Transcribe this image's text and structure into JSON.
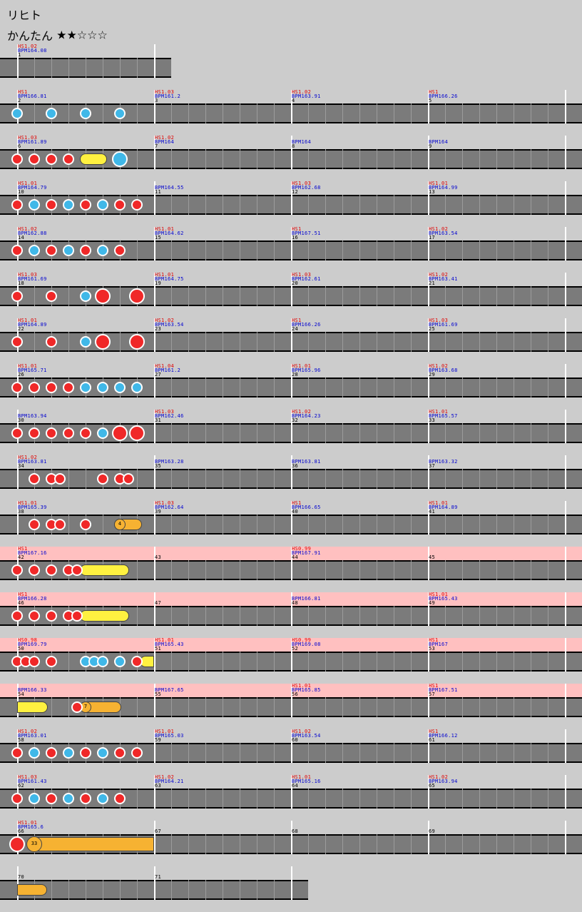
{
  "song_title": "リヒト",
  "difficulty": {
    "name": "かんたん",
    "stars_filled": 2,
    "stars_total": 5,
    "stars_text": "★★☆☆☆"
  },
  "measures_per_row": 4,
  "rows": [
    {
      "n": 1,
      "pink": false,
      "measures": [
        {
          "hs": "HS1.02",
          "bpm": "BPM164.08",
          "num": "1"
        }
      ],
      "notes": [],
      "rolls": []
    },
    {
      "n": 4,
      "pink": false,
      "measures": [
        {
          "hs": "HS1",
          "bpm": "BPM166.81",
          "num": "2"
        },
        {
          "hs": "HS1.03",
          "bpm": "BPM161.2",
          "num": "3"
        },
        {
          "hs": "HS1.02",
          "bpm": "BPM163.91",
          "num": "4"
        },
        {
          "hs": "HS1",
          "bpm": "BPM166.26",
          "num": "5"
        }
      ],
      "notes": [
        {
          "b": 0,
          "t": "ka"
        },
        {
          "b": 4,
          "t": "ka"
        },
        {
          "b": 8,
          "t": "ka"
        },
        {
          "b": 12,
          "t": "ka"
        }
      ],
      "rolls": []
    },
    {
      "n": 4,
      "pink": false,
      "measures": [
        {
          "hs": "HS1.03",
          "bpm": "BPM161.89",
          "num": "6"
        },
        {
          "hs": "HS1.02",
          "bpm": "BPM164",
          "num": "7"
        },
        {
          "hs": "",
          "bpm": "BPM164",
          "num": "8"
        },
        {
          "hs": "",
          "bpm": "BPM164",
          "num": "9"
        }
      ],
      "notes": [
        {
          "b": 0,
          "t": "dong"
        },
        {
          "b": 2,
          "t": "dong"
        },
        {
          "b": 4,
          "t": "dong"
        },
        {
          "b": 6,
          "t": "dong"
        },
        {
          "b": 12,
          "t": "ka",
          "big": true
        }
      ],
      "rolls": [
        {
          "s": 8,
          "e": 10.5,
          "c": "yellow"
        }
      ]
    },
    {
      "n": 4,
      "pink": false,
      "measures": [
        {
          "hs": "HS1.01",
          "bpm": "BPM164.79",
          "num": "10"
        },
        {
          "hs": "",
          "bpm": "BPM164.55",
          "num": "11"
        },
        {
          "hs": "HS1.03",
          "bpm": "BPM162.68",
          "num": "12"
        },
        {
          "hs": "HS1.01",
          "bpm": "BPM164.99",
          "num": "13"
        }
      ],
      "notes": [
        {
          "b": 0,
          "t": "dong"
        },
        {
          "b": 2,
          "t": "ka"
        },
        {
          "b": 4,
          "t": "dong"
        },
        {
          "b": 6,
          "t": "ka"
        },
        {
          "b": 8,
          "t": "dong"
        },
        {
          "b": 10,
          "t": "ka"
        },
        {
          "b": 12,
          "t": "dong"
        },
        {
          "b": 14,
          "t": "dong"
        }
      ],
      "rolls": []
    },
    {
      "n": 4,
      "pink": false,
      "measures": [
        {
          "hs": "HS1.02",
          "bpm": "BPM162.88",
          "num": "14"
        },
        {
          "hs": "HS1.01",
          "bpm": "BPM164.62",
          "num": "15"
        },
        {
          "hs": "HS1",
          "bpm": "BPM167.51",
          "num": "16"
        },
        {
          "hs": "HS1.02",
          "bpm": "BPM163.54",
          "num": "17"
        }
      ],
      "notes": [
        {
          "b": 0,
          "t": "dong"
        },
        {
          "b": 2,
          "t": "ka"
        },
        {
          "b": 4,
          "t": "dong"
        },
        {
          "b": 6,
          "t": "ka"
        },
        {
          "b": 8,
          "t": "dong"
        },
        {
          "b": 10,
          "t": "ka"
        },
        {
          "b": 12,
          "t": "dong"
        }
      ],
      "rolls": []
    },
    {
      "n": 4,
      "pink": false,
      "measures": [
        {
          "hs": "HS1.03",
          "bpm": "BPM161.69",
          "num": "18"
        },
        {
          "hs": "HS1.01",
          "bpm": "BPM164.75",
          "num": "19"
        },
        {
          "hs": "HS1.03",
          "bpm": "BPM162.61",
          "num": "20"
        },
        {
          "hs": "HS1.02",
          "bpm": "BPM163.41",
          "num": "21"
        }
      ],
      "notes": [
        {
          "b": 0,
          "t": "dong"
        },
        {
          "b": 4,
          "t": "dong"
        },
        {
          "b": 8,
          "t": "ka"
        },
        {
          "b": 10,
          "t": "dong",
          "big": true
        },
        {
          "b": 14,
          "t": "dong",
          "big": true
        }
      ],
      "rolls": []
    },
    {
      "n": 4,
      "pink": false,
      "measures": [
        {
          "hs": "HS1.01",
          "bpm": "BPM164.89",
          "num": "22"
        },
        {
          "hs": "HS1.02",
          "bpm": "BPM163.54",
          "num": "23"
        },
        {
          "hs": "HS1",
          "bpm": "BPM166.26",
          "num": "24"
        },
        {
          "hs": "HS1.03",
          "bpm": "BPM161.69",
          "num": "25"
        }
      ],
      "notes": [
        {
          "b": 0,
          "t": "dong"
        },
        {
          "b": 4,
          "t": "dong"
        },
        {
          "b": 8,
          "t": "ka"
        },
        {
          "b": 10,
          "t": "dong",
          "big": true
        },
        {
          "b": 14,
          "t": "dong",
          "big": true
        }
      ],
      "rolls": []
    },
    {
      "n": 4,
      "pink": false,
      "measures": [
        {
          "hs": "HS1.01",
          "bpm": "BPM165.71",
          "num": "26"
        },
        {
          "hs": "HS1.04",
          "bpm": "BPM161.2",
          "num": "27"
        },
        {
          "hs": "HS1.01",
          "bpm": "BPM165.96",
          "num": "28"
        },
        {
          "hs": "HS1.02",
          "bpm": "BPM163.68",
          "num": "29"
        }
      ],
      "notes": [
        {
          "b": 0,
          "t": "dong"
        },
        {
          "b": 2,
          "t": "dong"
        },
        {
          "b": 4,
          "t": "dong"
        },
        {
          "b": 6,
          "t": "dong"
        },
        {
          "b": 8,
          "t": "ka"
        },
        {
          "b": 10,
          "t": "ka"
        },
        {
          "b": 12,
          "t": "ka"
        },
        {
          "b": 14,
          "t": "ka"
        }
      ],
      "rolls": []
    },
    {
      "n": 4,
      "pink": false,
      "measures": [
        {
          "hs": "",
          "bpm": "BPM163.94",
          "num": "30"
        },
        {
          "hs": "HS1.03",
          "bpm": "BPM162.46",
          "num": "31"
        },
        {
          "hs": "HS1.02",
          "bpm": "BPM164.23",
          "num": "32"
        },
        {
          "hs": "HS1.01",
          "bpm": "BPM165.57",
          "num": "33"
        }
      ],
      "notes": [
        {
          "b": 0,
          "t": "dong"
        },
        {
          "b": 2,
          "t": "dong"
        },
        {
          "b": 4,
          "t": "dong"
        },
        {
          "b": 6,
          "t": "dong"
        },
        {
          "b": 8,
          "t": "dong"
        },
        {
          "b": 10,
          "t": "ka"
        },
        {
          "b": 12,
          "t": "dong",
          "big": true
        },
        {
          "b": 14,
          "t": "dong",
          "big": true
        }
      ],
      "rolls": []
    },
    {
      "n": 4,
      "pink": false,
      "measures": [
        {
          "hs": "HS1.02",
          "bpm": "BPM163.81",
          "num": "34"
        },
        {
          "hs": "",
          "bpm": "BPM163.28",
          "num": "35"
        },
        {
          "hs": "",
          "bpm": "BPM163.81",
          "num": "36"
        },
        {
          "hs": "",
          "bpm": "BPM163.32",
          "num": "37"
        }
      ],
      "notes": [
        {
          "b": 2,
          "t": "dong"
        },
        {
          "b": 4,
          "t": "dong"
        },
        {
          "b": 5,
          "t": "dong"
        },
        {
          "b": 10,
          "t": "dong"
        },
        {
          "b": 12,
          "t": "dong"
        },
        {
          "b": 13,
          "t": "dong"
        }
      ],
      "rolls": []
    },
    {
      "n": 4,
      "pink": false,
      "measures": [
        {
          "hs": "HS1.01",
          "bpm": "BPM165.39",
          "num": "38"
        },
        {
          "hs": "HS1.03",
          "bpm": "BPM162.64",
          "num": "39"
        },
        {
          "hs": "HS1",
          "bpm": "BPM166.65",
          "num": "40"
        },
        {
          "hs": "HS1.01",
          "bpm": "BPM164.89",
          "num": "41"
        }
      ],
      "notes": [
        {
          "b": 2,
          "t": "dong"
        },
        {
          "b": 4,
          "t": "dong"
        },
        {
          "b": 5,
          "t": "dong"
        },
        {
          "b": 8,
          "t": "dong"
        }
      ],
      "rolls": [
        {
          "s": 12,
          "e": 14.6,
          "c": "orange",
          "balloon": "4"
        }
      ]
    },
    {
      "n": 4,
      "pink": true,
      "measures": [
        {
          "hs": "HS1",
          "bpm": "BPM167.16",
          "num": "42"
        },
        {
          "hs": "",
          "bpm": "",
          "num": "43"
        },
        {
          "hs": "HS0.99",
          "bpm": "BPM167.91",
          "num": "44"
        },
        {
          "hs": "",
          "bpm": "",
          "num": "45"
        }
      ],
      "notes": [
        {
          "b": 0,
          "t": "dong"
        },
        {
          "b": 2,
          "t": "dong"
        },
        {
          "b": 4,
          "t": "dong"
        },
        {
          "b": 6,
          "t": "dong"
        },
        {
          "b": 7,
          "t": "dong"
        }
      ],
      "rolls": [
        {
          "s": 8,
          "e": 13.1,
          "c": "yellow"
        }
      ]
    },
    {
      "n": 4,
      "pink": true,
      "measures": [
        {
          "hs": "HS1",
          "bpm": "BPM166.28",
          "num": "46"
        },
        {
          "hs": "",
          "bpm": "",
          "num": "47"
        },
        {
          "hs": "",
          "bpm": "BPM166.81",
          "num": "48"
        },
        {
          "hs": "HS1.01",
          "bpm": "BPM165.43",
          "num": "49"
        }
      ],
      "notes": [
        {
          "b": 0,
          "t": "dong"
        },
        {
          "b": 2,
          "t": "dong"
        },
        {
          "b": 4,
          "t": "dong"
        },
        {
          "b": 6,
          "t": "dong"
        },
        {
          "b": 7,
          "t": "dong"
        }
      ],
      "rolls": [
        {
          "s": 8,
          "e": 13.1,
          "c": "yellow"
        }
      ]
    },
    {
      "n": 4,
      "pink": true,
      "measures": [
        {
          "hs": "HS0.98",
          "bpm": "BPM169.79",
          "num": "50"
        },
        {
          "hs": "HS1.01",
          "bpm": "BPM165.43",
          "num": "51"
        },
        {
          "hs": "HS0.99",
          "bpm": "BPM169.08",
          "num": "52"
        },
        {
          "hs": "HS1",
          "bpm": "BPM167",
          "num": "53"
        }
      ],
      "notes": [
        {
          "b": 0,
          "t": "dong"
        },
        {
          "b": 1,
          "t": "dong"
        },
        {
          "b": 2,
          "t": "dong"
        },
        {
          "b": 4,
          "t": "dong"
        },
        {
          "b": 8,
          "t": "ka"
        },
        {
          "b": 9,
          "t": "ka"
        },
        {
          "b": 10,
          "t": "ka"
        },
        {
          "b": 12,
          "t": "ka"
        },
        {
          "b": 14,
          "t": "dong"
        }
      ],
      "rolls": [
        {
          "s": 15,
          "e": 16,
          "c": "yellow",
          "open_end": true
        }
      ]
    },
    {
      "n": 4,
      "pink": true,
      "measures": [
        {
          "hs": "",
          "bpm": "BPM166.33",
          "num": "54"
        },
        {
          "hs": "",
          "bpm": "BPM167.65",
          "num": "55"
        },
        {
          "hs": "HS1.01",
          "bpm": "BPM165.85",
          "num": "56"
        },
        {
          "hs": "HS1",
          "bpm": "BPM167.51",
          "num": "57"
        }
      ],
      "notes": [
        {
          "b": 7,
          "t": "dong"
        }
      ],
      "rolls": [
        {
          "s": 0,
          "e": 3.6,
          "c": "yellow",
          "open_start": true
        },
        {
          "s": 8,
          "e": 12.2,
          "c": "orange",
          "balloon": "7"
        }
      ]
    },
    {
      "n": 4,
      "pink": false,
      "measures": [
        {
          "hs": "HS1.02",
          "bpm": "BPM163.01",
          "num": "58"
        },
        {
          "hs": "HS1.01",
          "bpm": "BPM165.03",
          "num": "59"
        },
        {
          "hs": "HS1.02",
          "bpm": "BPM163.54",
          "num": "60"
        },
        {
          "hs": "HS1",
          "bpm": "BPM166.12",
          "num": "61"
        }
      ],
      "notes": [
        {
          "b": 0,
          "t": "dong"
        },
        {
          "b": 2,
          "t": "ka"
        },
        {
          "b": 4,
          "t": "dong"
        },
        {
          "b": 6,
          "t": "ka"
        },
        {
          "b": 8,
          "t": "dong"
        },
        {
          "b": 10,
          "t": "ka"
        },
        {
          "b": 12,
          "t": "dong"
        },
        {
          "b": 14,
          "t": "dong"
        }
      ],
      "rolls": []
    },
    {
      "n": 4,
      "pink": false,
      "measures": [
        {
          "hs": "HS1.03",
          "bpm": "BPM161.43",
          "num": "62"
        },
        {
          "hs": "HS1.02",
          "bpm": "BPM164.21",
          "num": "63"
        },
        {
          "hs": "HS1.01",
          "bpm": "BPM165.16",
          "num": "64"
        },
        {
          "hs": "HS1.02",
          "bpm": "BPM163.94",
          "num": "65"
        }
      ],
      "notes": [
        {
          "b": 0,
          "t": "dong"
        },
        {
          "b": 2,
          "t": "ka"
        },
        {
          "b": 4,
          "t": "dong"
        },
        {
          "b": 6,
          "t": "ka"
        },
        {
          "b": 8,
          "t": "dong"
        },
        {
          "b": 10,
          "t": "ka"
        },
        {
          "b": 12,
          "t": "dong"
        }
      ],
      "rolls": []
    },
    {
      "n": 4,
      "pink": false,
      "measures": [
        {
          "hs": "HS1.01",
          "bpm": "BPM165.6",
          "num": "66"
        },
        {
          "hs": "",
          "bpm": "",
          "num": "67"
        },
        {
          "hs": "",
          "bpm": "",
          "num": "68"
        },
        {
          "hs": "",
          "bpm": "",
          "num": "69"
        }
      ],
      "notes": [
        {
          "b": 0,
          "t": "dong",
          "big": true
        }
      ],
      "rolls": [
        {
          "s": 2,
          "e": 16,
          "c": "orange",
          "balloon": "33",
          "open_end": true,
          "big": true
        }
      ]
    },
    {
      "n": 2,
      "pink": false,
      "measures": [
        {
          "hs": "",
          "bpm": "",
          "num": "70"
        },
        {
          "hs": "",
          "bpm": "",
          "num": "71"
        }
      ],
      "notes": [],
      "rolls": [
        {
          "s": 0,
          "e": 3.5,
          "c": "orange",
          "open_start": true
        }
      ]
    }
  ]
}
